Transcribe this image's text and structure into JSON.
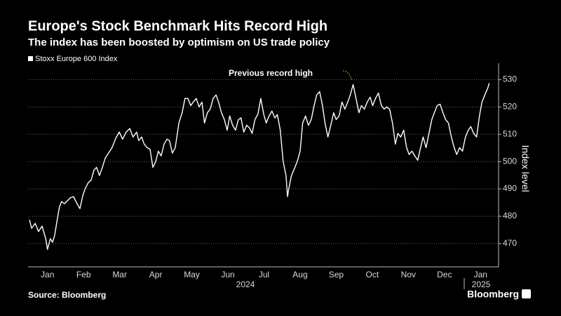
{
  "chart_data": {
    "type": "line",
    "title": "Europe's Stock Benchmark Hits Record High",
    "subtitle": "The index has been boosted by optimism on US trade policy",
    "source": "Source: Bloomberg",
    "brand": "Bloomberg",
    "y_label": "Index level",
    "year_labels": [
      "2024",
      "2025"
    ],
    "annotation": {
      "text": "Previous record high",
      "color": "#8fd13f"
    },
    "x": [
      0.0,
      0.06,
      0.16,
      0.25,
      0.35,
      0.45,
      0.5,
      0.58,
      0.64,
      0.7,
      0.78,
      0.83,
      0.89,
      0.97,
      1.07,
      1.13,
      1.22,
      1.32,
      1.4,
      1.48,
      1.55,
      1.63,
      1.71,
      1.79,
      1.86,
      1.94,
      2.02,
      2.1,
      2.19,
      2.29,
      2.39,
      2.49,
      2.58,
      2.68,
      2.78,
      2.87,
      2.97,
      3.03,
      3.11,
      3.18,
      3.26,
      3.34,
      3.42,
      3.5,
      3.57,
      3.65,
      3.73,
      3.81,
      3.88,
      3.96,
      4.04,
      4.14,
      4.23,
      4.31,
      4.39,
      4.47,
      4.54,
      4.62,
      4.7,
      4.78,
      4.85,
      4.93,
      5.01,
      5.09,
      5.17,
      5.24,
      5.32,
      5.4,
      5.48,
      5.55,
      5.63,
      5.71,
      5.79,
      5.86,
      5.94,
      6.02,
      6.1,
      6.17,
      6.25,
      6.33,
      6.41,
      6.49,
      6.56,
      6.64,
      6.72,
      6.8,
      6.87,
      6.95,
      7.03,
      7.11,
      7.15,
      7.18,
      7.26,
      7.34,
      7.42,
      7.5,
      7.57,
      7.65,
      7.73,
      7.81,
      7.88,
      7.96,
      8.04,
      8.12,
      8.19,
      8.27,
      8.35,
      8.43,
      8.5,
      8.58,
      8.66,
      8.74,
      8.82,
      8.89,
      8.97,
      9.05,
      9.13,
      9.2,
      9.28,
      9.36,
      9.44,
      9.51,
      9.59,
      9.67,
      9.75,
      9.83,
      9.9,
      9.98,
      10.06,
      10.14,
      10.21,
      10.29,
      10.37,
      10.45,
      10.52,
      10.6,
      10.68,
      10.76,
      10.83,
      10.91,
      10.99,
      11.07,
      11.15,
      11.22,
      11.3,
      11.38,
      11.46,
      11.53,
      11.61,
      11.69,
      11.77,
      11.84,
      11.92,
      12.0,
      12.08,
      12.16,
      12.23,
      12.31,
      12.39,
      12.47,
      12.54,
      12.62,
      12.7,
      12.74
    ],
    "series": [
      {
        "name": "Stoxx Europe 600 Index",
        "color": "#ffffff",
        "values": [
          478.7,
          475.6,
          477.4,
          474.4,
          476.4,
          471.8,
          467.9,
          471.8,
          470.5,
          473.1,
          479.5,
          483.3,
          485.4,
          484.6,
          485.9,
          486.7,
          487.2,
          484.6,
          482.8,
          487.7,
          490.3,
          492.3,
          493.3,
          496.9,
          497.9,
          494.9,
          497.9,
          501.3,
          503.1,
          505.1,
          508.5,
          510.8,
          508.2,
          510.8,
          512.1,
          509.0,
          510.8,
          507.7,
          509.0,
          506.4,
          505.1,
          504.6,
          497.9,
          500.0,
          503.8,
          502.1,
          506.4,
          508.2,
          507.7,
          503.1,
          505.1,
          514.1,
          517.9,
          523.1,
          523.1,
          520.5,
          521.8,
          523.1,
          520.0,
          521.8,
          514.1,
          517.9,
          519.2,
          523.1,
          524.4,
          521.8,
          517.9,
          515.4,
          511.5,
          516.7,
          513.3,
          511.5,
          515.4,
          516.0,
          510.8,
          513.3,
          512.3,
          510.3,
          515.4,
          517.4,
          523.1,
          517.4,
          514.1,
          516.7,
          518.5,
          516.0,
          517.2,
          511.5,
          500.0,
          494.9,
          487.2,
          489.7,
          494.9,
          497.4,
          500.0,
          503.8,
          514.1,
          516.7,
          513.3,
          515.4,
          520.0,
          524.4,
          525.6,
          520.5,
          514.1,
          509.0,
          513.3,
          517.9,
          515.4,
          516.7,
          521.8,
          519.2,
          521.8,
          524.4,
          528.2,
          523.1,
          517.9,
          520.5,
          519.2,
          521.8,
          523.6,
          520.5,
          523.1,
          525.1,
          520.5,
          519.2,
          520.0,
          519.2,
          514.1,
          506.4,
          510.3,
          509.0,
          511.5,
          505.1,
          502.6,
          503.8,
          502.1,
          500.5,
          504.6,
          509.0,
          505.1,
          510.3,
          515.4,
          517.9,
          520.5,
          521.0,
          517.9,
          515.4,
          514.1,
          509.0,
          505.1,
          502.6,
          505.1,
          503.8,
          509.0,
          511.5,
          512.8,
          510.3,
          509.0,
          516.7,
          521.8,
          524.4,
          526.9,
          528.7
        ]
      }
    ],
    "xlim": [
      0,
      13
    ],
    "xticks": [
      {
        "value": 0.5,
        "label": "Jan"
      },
      {
        "value": 1.5,
        "label": "Feb"
      },
      {
        "value": 2.5,
        "label": "Mar"
      },
      {
        "value": 3.5,
        "label": "Apr"
      },
      {
        "value": 4.5,
        "label": "May"
      },
      {
        "value": 5.5,
        "label": "Jun"
      },
      {
        "value": 6.5,
        "label": "Jul"
      },
      {
        "value": 7.5,
        "label": "Aug"
      },
      {
        "value": 8.5,
        "label": "Sep"
      },
      {
        "value": 9.5,
        "label": "Oct"
      },
      {
        "value": 10.5,
        "label": "Nov"
      },
      {
        "value": 11.5,
        "label": "Dec"
      },
      {
        "value": 12.5,
        "label": "Jan"
      }
    ],
    "ylim": [
      461.5,
      536
    ],
    "yticks": [
      470,
      480,
      490,
      500,
      510,
      520,
      530
    ],
    "grid": true
  }
}
